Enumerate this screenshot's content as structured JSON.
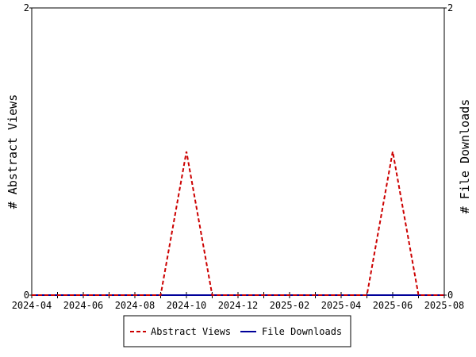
{
  "chart_data": {
    "type": "line",
    "title": "",
    "xlabel": "",
    "y_left_label": "# Abstract Views",
    "y_right_label": "# File Downloads",
    "x_tick_labels": [
      "2024-04",
      "2024-06",
      "2024-08",
      "2024-10",
      "2024-12",
      "2025-02",
      "2025-04",
      "2025-06",
      "2025-08"
    ],
    "y_left_ticks": [
      "0",
      "2"
    ],
    "y_right_ticks": [
      "0",
      "2"
    ],
    "y_left_range": [
      0,
      2
    ],
    "y_right_range": [
      0,
      2
    ],
    "x": [
      "2024-04",
      "2024-05",
      "2024-06",
      "2024-07",
      "2024-08",
      "2024-09",
      "2024-10",
      "2024-11",
      "2024-12",
      "2025-01",
      "2025-02",
      "2025-03",
      "2025-04",
      "2025-05",
      "2025-06",
      "2025-07",
      "2025-08"
    ],
    "series": [
      {
        "name": "Abstract Views",
        "axis": "left",
        "style": "dashed",
        "color": "#cc0000",
        "values": [
          0,
          0,
          0,
          0,
          0,
          0,
          1,
          0,
          0,
          0,
          0,
          0,
          0,
          0,
          1,
          0,
          0
        ]
      },
      {
        "name": "File Downloads",
        "axis": "right",
        "style": "solid",
        "color": "#000099",
        "values": [
          0,
          0,
          0,
          0,
          0,
          0,
          0,
          0,
          0,
          0,
          0,
          0,
          0,
          0,
          0,
          0,
          0
        ]
      }
    ],
    "grid": false,
    "legend_position": "bottom"
  }
}
